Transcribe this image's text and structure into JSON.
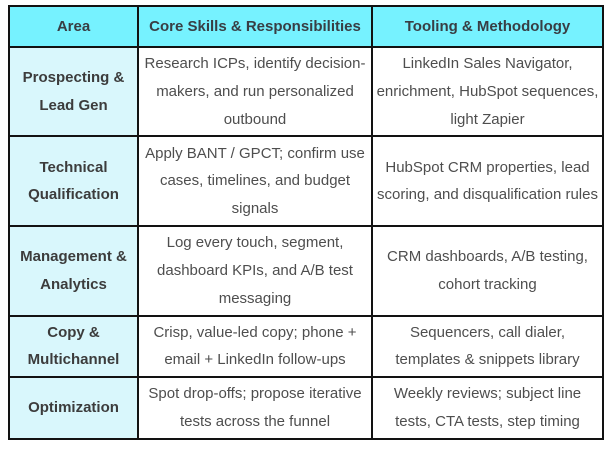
{
  "colors": {
    "header_bg": "#76f2ff",
    "area_column_bg": "#d9f7fc",
    "border": "#121212",
    "header_text": "#383e44",
    "area_text": "#3c3c3c",
    "body_text": "#4e4e4e"
  },
  "table": {
    "headers": [
      "Area",
      "Core Skills & Responsibilities",
      "Tooling & Methodology"
    ],
    "rows": [
      {
        "area": "Prospecting & Lead Gen",
        "skills": "Research ICPs, identify decision-makers, and run personalized outbound",
        "tooling": "LinkedIn Sales Navigator, enrichment, HubSpot sequences, light Zapier"
      },
      {
        "area": "Technical Qualification",
        "skills": "Apply BANT / GPCT; confirm use cases, timelines, and budget signals",
        "tooling": "HubSpot CRM properties, lead scoring, and disqualification rules"
      },
      {
        "area": "Management & Analytics",
        "skills": "Log every touch, segment, dashboard KPIs, and A/B test messaging",
        "tooling": "CRM dashboards, A/B testing, cohort tracking"
      },
      {
        "area": "Copy & Multichannel",
        "skills": "Crisp, value-led copy; phone + email + LinkedIn follow-ups",
        "tooling": "Sequencers, call dialer, templates & snippets library"
      },
      {
        "area": "Optimization",
        "skills": "Spot drop-offs; propose iterative tests across the funnel",
        "tooling": "Weekly reviews; subject line tests, CTA tests, step timing"
      }
    ]
  }
}
